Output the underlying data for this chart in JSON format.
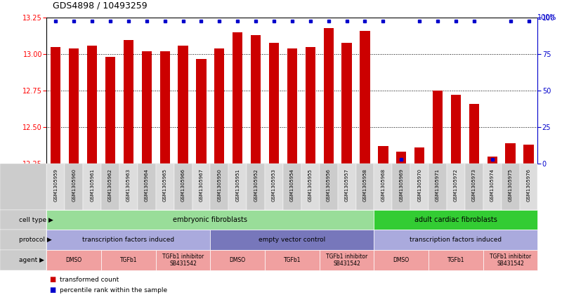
{
  "title": "GDS4898 / 10493259",
  "samples": [
    "GSM1305959",
    "GSM1305960",
    "GSM1305961",
    "GSM1305962",
    "GSM1305963",
    "GSM1305964",
    "GSM1305965",
    "GSM1305966",
    "GSM1305967",
    "GSM1305950",
    "GSM1305951",
    "GSM1305952",
    "GSM1305953",
    "GSM1305954",
    "GSM1305955",
    "GSM1305956",
    "GSM1305957",
    "GSM1305958",
    "GSM1305968",
    "GSM1305969",
    "GSM1305970",
    "GSM1305971",
    "GSM1305972",
    "GSM1305973",
    "GSM1305974",
    "GSM1305975",
    "GSM1305976"
  ],
  "red_values": [
    13.05,
    13.04,
    13.06,
    12.98,
    13.1,
    13.02,
    13.02,
    13.06,
    12.97,
    13.04,
    13.15,
    13.13,
    13.08,
    13.04,
    13.05,
    13.18,
    13.08,
    13.16,
    12.37,
    12.33,
    12.36,
    12.75,
    12.72,
    12.66,
    12.3,
    12.39,
    12.38
  ],
  "blue_values": [
    98,
    98,
    98,
    98,
    98,
    98,
    98,
    98,
    98,
    98,
    98,
    98,
    98,
    98,
    98,
    98,
    98,
    98,
    98,
    3,
    98,
    98,
    98,
    98,
    3,
    98,
    98
  ],
  "ylim_left": [
    12.25,
    13.25
  ],
  "ylim_right": [
    0,
    100
  ],
  "yticks_left": [
    12.25,
    12.5,
    12.75,
    13.0,
    13.25
  ],
  "yticks_right": [
    0,
    25,
    50,
    75,
    100
  ],
  "bar_color": "#cc0000",
  "blue_color": "#0000cc",
  "cell_type_groups": [
    {
      "label": "embryonic fibroblasts",
      "start": 0,
      "end": 18,
      "color": "#99dd99"
    },
    {
      "label": "adult cardiac fibroblasts",
      "start": 18,
      "end": 27,
      "color": "#33cc33"
    }
  ],
  "protocol_colors": [
    "#aaaadd",
    "#7777bb",
    "#aaaadd"
  ],
  "protocol_groups": [
    {
      "label": "transcription factors induced",
      "start": 0,
      "end": 9
    },
    {
      "label": "empty vector control",
      "start": 9,
      "end": 18
    },
    {
      "label": "transcription factors induced",
      "start": 18,
      "end": 27
    }
  ],
  "agent_groups": [
    {
      "label": "DMSO",
      "start": 0,
      "end": 3
    },
    {
      "label": "TGFb1",
      "start": 3,
      "end": 6
    },
    {
      "label": "TGFb1 inhibitor\nSB431542",
      "start": 6,
      "end": 9
    },
    {
      "label": "DMSO",
      "start": 9,
      "end": 12
    },
    {
      "label": "TGFb1",
      "start": 12,
      "end": 15
    },
    {
      "label": "TGFb1 inhibitor\nSB431542",
      "start": 15,
      "end": 18
    },
    {
      "label": "DMSO",
      "start": 18,
      "end": 21
    },
    {
      "label": "TGFb1",
      "start": 21,
      "end": 24
    },
    {
      "label": "TGFb1 inhibitor\nSB431542",
      "start": 24,
      "end": 27
    }
  ],
  "agent_color": "#f0a0a0",
  "row_labels": [
    "cell type",
    "protocol",
    "agent"
  ],
  "background_color": "#ffffff",
  "label_bg_color": "#cccccc"
}
